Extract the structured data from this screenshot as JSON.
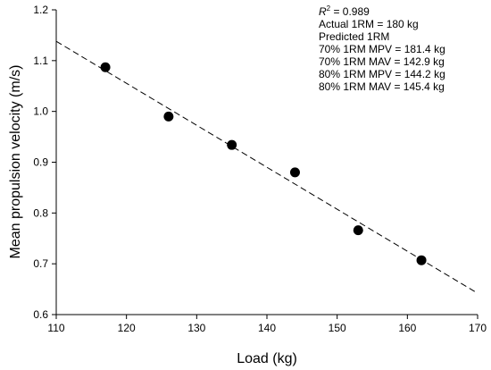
{
  "chart_data": {
    "type": "scatter",
    "xlabel": "Load (kg)",
    "ylabel": "Mean propulsion velocity (m/s)",
    "xlim": [
      110,
      170
    ],
    "ylim": [
      0.6,
      1.2
    ],
    "xticks": [
      "110",
      "120",
      "130",
      "140",
      "150",
      "160",
      "170"
    ],
    "yticks": [
      "0.6",
      "0.7",
      "0.8",
      "0.9",
      "1.0",
      "1.1",
      "1.2"
    ],
    "grid": false,
    "points": [
      {
        "x": 117,
        "y": 1.087
      },
      {
        "x": 126,
        "y": 0.99
      },
      {
        "x": 135,
        "y": 0.934
      },
      {
        "x": 144,
        "y": 0.88
      },
      {
        "x": 153,
        "y": 0.766
      },
      {
        "x": 162,
        "y": 0.707
      }
    ],
    "fit_line": {
      "style": "dashed",
      "from": {
        "x": 110,
        "y": 1.138
      },
      "to": {
        "x": 170,
        "y": 0.642
      }
    },
    "annotations": {
      "r2_symbol": "R",
      "r2_sup": "2",
      "r2_value": " = 0.989",
      "lines": [
        "Actual 1RM = 180 kg",
        "Predicted 1RM",
        "70% 1RM MPV = 181.4 kg",
        "70% 1RM MAV = 142.9 kg",
        "80% 1RM MPV = 144.2 kg",
        "80% 1RM MAV = 145.4 kg"
      ]
    }
  }
}
